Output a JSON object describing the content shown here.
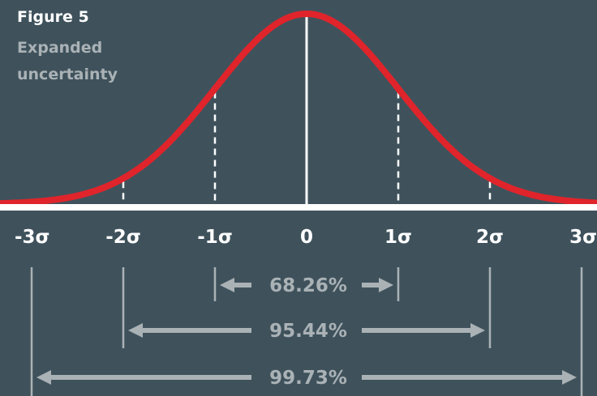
{
  "figure": {
    "title": "Figure 5",
    "subtitle": "Expanded uncertainty"
  },
  "axis": {
    "tick_labels": [
      "-3σ",
      "-2σ",
      "-1σ",
      "0",
      "1σ",
      "2σ",
      "3σ"
    ]
  },
  "intervals": [
    {
      "label": "68.26%",
      "from": -1,
      "to": 1
    },
    {
      "label": "95.44%",
      "from": -2,
      "to": 2
    },
    {
      "label": "99.73%",
      "from": -3,
      "to": 3
    }
  ],
  "colors": {
    "background": "#3f525c",
    "curve": "#e0242b",
    "axis": "#ffffff",
    "interval": "#aab2b6",
    "title": "#ffffff",
    "subtitle": "#aab2b6"
  }
}
